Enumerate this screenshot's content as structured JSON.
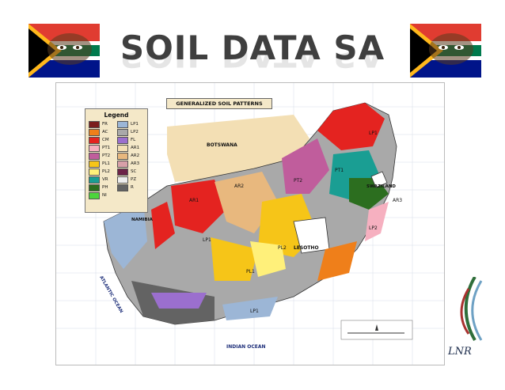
{
  "slide": {
    "title": "SOIL DATA SA"
  },
  "map": {
    "heading": "GENERALIZED SOIL PATTERNS",
    "legend": {
      "title": "Legend",
      "items": [
        {
          "code": "FR",
          "color": "#7b1e1e"
        },
        {
          "code": "LP1",
          "color": "#9cb6d6"
        },
        {
          "code": "AC",
          "color": "#ef7f1a"
        },
        {
          "code": "LP2",
          "color": "#a9a9a9"
        },
        {
          "code": "CM",
          "color": "#e42320"
        },
        {
          "code": "FL",
          "color": "#9b6fce"
        },
        {
          "code": "PT1",
          "color": "#f6b0c0"
        },
        {
          "code": "AR1",
          "color": "#f3dfb4"
        },
        {
          "code": "PT2",
          "color": "#c05d9c"
        },
        {
          "code": "AR2",
          "color": "#e8b87e"
        },
        {
          "code": "PL1",
          "color": "#f6c518"
        },
        {
          "code": "AR3",
          "color": "#d8a0a8"
        },
        {
          "code": "PL2",
          "color": "#fff07a"
        },
        {
          "code": "SC",
          "color": "#6c2347"
        },
        {
          "code": "VR",
          "color": "#1a9e93"
        },
        {
          "code": "PZ",
          "color": "#ededed"
        },
        {
          "code": "PH",
          "color": "#2c6e1f"
        },
        {
          "code": "R",
          "color": "#636363"
        },
        {
          "code": "NI",
          "color": "#4cd43c"
        }
      ]
    },
    "labels": {
      "botswana": "BOTSWANA",
      "namibia": "NAMIBIA",
      "lesotho": "LESOTHO",
      "swaziland": "SWAZILAND",
      "atlantic": "ATLANTIC OCEAN",
      "indian": "INDIAN OCEAN"
    },
    "region_codes": {
      "ar1": "AR1",
      "ar2": "AR2",
      "lp1": "LP1",
      "lp1_south": "LP1",
      "pl1": "PL1",
      "pl2": "PL2",
      "pt1": "PT1",
      "lp2": "LP2",
      "ar3": "AR3",
      "pt2": "PT2",
      "lp1_north": "LP1"
    },
    "colors": {
      "ocean": "#ffffff",
      "land_outside": "#ffffff",
      "frame": "#bbbbbb",
      "border": "#333333"
    }
  },
  "logo": {
    "text": "LNR"
  }
}
